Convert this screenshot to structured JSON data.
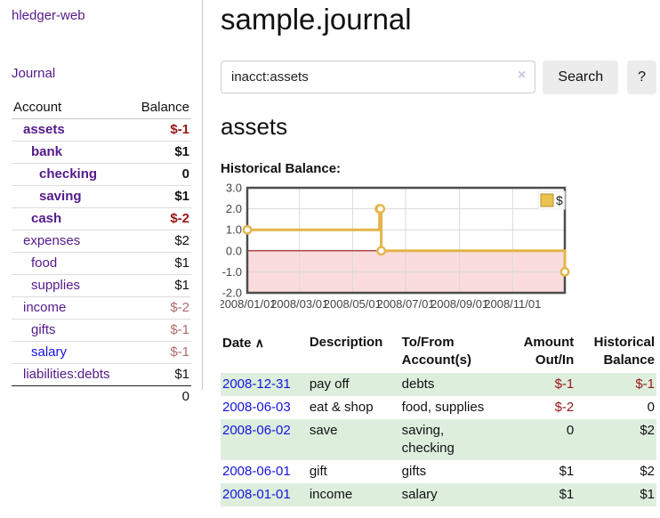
{
  "colors": {
    "purple_link": "#541a8b",
    "blue_link": "#1414dd",
    "negative_strong": "#971616",
    "negative_soft": "#b26a6a",
    "row_stripe_green": "#ddeedd",
    "chart_line_gold": "#e3b54a",
    "chart_negative_fill": "#fbdcdc",
    "chart_zero_line": "#8b0000",
    "chart_border": "#4d4d4d",
    "chart_grid": "#d9d9d9"
  },
  "sidebar": {
    "app_title": "hledger-web",
    "nav": {
      "journal_label": "Journal"
    },
    "accounts_table": {
      "headers": {
        "account": "Account",
        "balance": "Balance"
      },
      "rows": [
        {
          "name": "assets",
          "depth": 1,
          "bold": true,
          "balance": "$-1",
          "neg": "strong",
          "bold_balance": true
        },
        {
          "name": "bank",
          "depth": 2,
          "bold": true,
          "balance": "$1",
          "bold_balance": true
        },
        {
          "name": "checking",
          "depth": 3,
          "bold": true,
          "balance": "0",
          "bold_balance": true
        },
        {
          "name": "saving",
          "depth": 3,
          "bold": true,
          "balance": "$1",
          "bold_balance": true
        },
        {
          "name": "cash",
          "depth": 2,
          "bold": true,
          "balance": "$-2",
          "neg": "strong",
          "bold_balance": true
        },
        {
          "name": "expenses",
          "depth": 1,
          "bold": false,
          "balance": "$2"
        },
        {
          "name": "food",
          "depth": 2,
          "bold": false,
          "balance": "$1"
        },
        {
          "name": "supplies",
          "depth": 2,
          "bold": false,
          "balance": "$1"
        },
        {
          "name": "income",
          "depth": 1,
          "bold": false,
          "balance": "$-2",
          "neg": "soft"
        },
        {
          "name": "gifts",
          "depth": 2,
          "bold": false,
          "balance": "$-1",
          "neg": "soft"
        },
        {
          "name": "salary",
          "depth": 2,
          "bold": false,
          "balance": "$-1",
          "neg": "soft",
          "blue": true
        },
        {
          "name": "liabilities:debts",
          "depth": 1,
          "bold": false,
          "balance": "$1"
        }
      ],
      "total": "0"
    }
  },
  "main": {
    "title": "sample.journal",
    "search": {
      "value": "inacct:assets",
      "clear_icon": "×",
      "search_button_label": "Search",
      "help_button_label": "?"
    },
    "account_heading": "assets",
    "chart_label": "Historical Balance:",
    "register": {
      "headers": {
        "date": "Date",
        "sort_indicator": "∧",
        "description": "Description",
        "accounts": "To/From Account(s)",
        "amount": "Amount Out/In",
        "balance": "Historical Balance"
      },
      "rows": [
        {
          "date": "2008-12-31",
          "description": "pay off",
          "accounts": "debts",
          "amount": "$-1",
          "amount_neg": true,
          "balance": "$-1",
          "balance_neg": true
        },
        {
          "date": "2008-06-03",
          "description": "eat & shop",
          "accounts": "food, supplies",
          "amount": "$-2",
          "amount_neg": true,
          "balance": "0",
          "balance_neg": false
        },
        {
          "date": "2008-06-02",
          "description": "save",
          "accounts": "saving, checking",
          "amount": "0",
          "amount_neg": false,
          "balance": "$2",
          "balance_neg": false
        },
        {
          "date": "2008-06-01",
          "description": "gift",
          "accounts": "gifts",
          "amount": "$1",
          "amount_neg": false,
          "balance": "$2",
          "balance_neg": false
        },
        {
          "date": "2008-01-01",
          "description": "income",
          "accounts": "salary",
          "amount": "$1",
          "amount_neg": false,
          "balance": "$1",
          "balance_neg": false
        }
      ]
    }
  },
  "chart_data": {
    "type": "line",
    "step": true,
    "title": "Historical Balance:",
    "x": [
      "2008-01-01",
      "2008-06-01",
      "2008-06-02",
      "2008-06-03",
      "2008-12-31"
    ],
    "series": [
      {
        "name": "$",
        "color": "#e3b54a",
        "values": [
          1,
          2,
          2,
          0,
          -1
        ]
      }
    ],
    "x_ticks": [
      {
        "date": "2008-01-01",
        "label": "2008/01/01"
      },
      {
        "date": "2008-03-01",
        "label": "2008/03/01"
      },
      {
        "date": "2008-05-01",
        "label": "2008/05/01"
      },
      {
        "date": "2008-07-01",
        "label": "2008/07/01"
      },
      {
        "date": "2008-09-01",
        "label": "2008/09/01"
      },
      {
        "date": "2008-11-01",
        "label": "2008/11/01"
      }
    ],
    "y_ticks": [
      3.0,
      2.0,
      1.0,
      0.0,
      -1.0,
      -2.0
    ],
    "xlim": [
      "2008-01-01",
      "2008-12-31"
    ],
    "ylim": [
      -2,
      3
    ],
    "grid": true,
    "legend": {
      "label": "$",
      "position": "top-right"
    },
    "negative_region_shaded": true
  }
}
